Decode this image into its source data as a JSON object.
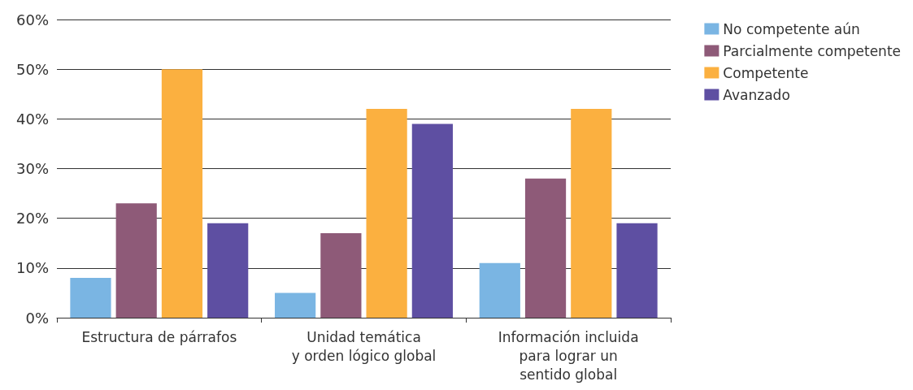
{
  "chart_data": {
    "type": "bar",
    "categories": [
      "Estructura de párrafos",
      "Unidad temática\ny orden lógico global",
      "Información incluida\npara lograr un\nsentido global"
    ],
    "series": [
      {
        "name": "No competente aún",
        "color": "#7ab5e3",
        "values": [
          8,
          5,
          11
        ]
      },
      {
        "name": "Parcialmente competente",
        "color": "#8e5a78",
        "values": [
          23,
          17,
          28
        ]
      },
      {
        "name": "Competente",
        "color": "#fbb040",
        "values": [
          50,
          42,
          42
        ]
      },
      {
        "name": "Avanzado",
        "color": "#5e4fa2",
        "values": [
          19,
          39,
          19
        ]
      }
    ],
    "ylim": [
      0,
      60
    ],
    "yticks": [
      {
        "value": 0,
        "label": "0%"
      },
      {
        "value": 10,
        "label": "10%"
      },
      {
        "value": 20,
        "label": "20%"
      },
      {
        "value": 30,
        "label": "30%"
      },
      {
        "value": 40,
        "label": "40%"
      },
      {
        "value": 50,
        "label": "50%"
      },
      {
        "value": 60,
        "label": "60%"
      }
    ],
    "grid": "y",
    "legend": "top right"
  }
}
